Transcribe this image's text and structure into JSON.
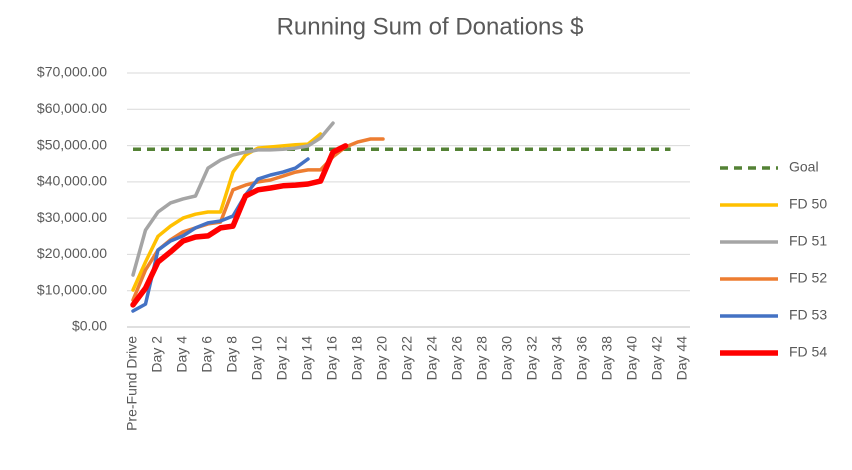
{
  "chart_data": {
    "type": "line",
    "title": "Running Sum of Donations $",
    "categories": [
      "Pre-Fund Drive",
      null,
      "Day 2",
      null,
      "Day 4",
      null,
      "Day 6",
      null,
      "Day 8",
      null,
      "Day 10",
      null,
      "Day 12",
      null,
      "Day 14",
      null,
      "Day 16",
      null,
      "Day 18",
      null,
      "Day 20",
      null,
      "Day 22",
      null,
      "Day 24",
      null,
      "Day 26",
      null,
      "Day 28",
      null,
      "Day 30",
      null,
      "Day 32",
      null,
      "Day 34",
      null,
      "Day 36",
      null,
      "Day 38",
      null,
      "Day 40",
      null,
      "Day 42",
      null,
      "Day 44"
    ],
    "ylim": [
      0,
      70000
    ],
    "yticks": [
      {
        "value": 0,
        "label": "$0.00"
      },
      {
        "value": 10000,
        "label": "$10,000.00"
      },
      {
        "value": 20000,
        "label": "$20,000.00"
      },
      {
        "value": 30000,
        "label": "$30,000.00"
      },
      {
        "value": 40000,
        "label": "$40,000.00"
      },
      {
        "value": 50000,
        "label": "$50,000.00"
      },
      {
        "value": 60000,
        "label": "$60,000.00"
      },
      {
        "value": 70000,
        "label": "$70,000.00"
      }
    ],
    "grid": true,
    "legend": "right",
    "series": [
      {
        "name": "Goal",
        "color": "#548235",
        "line_style": "dashed",
        "values": [
          49000,
          49000,
          49000,
          49000,
          49000,
          49000,
          49000,
          49000,
          49000,
          49000,
          49000,
          49000,
          49000,
          49000,
          49000,
          49000,
          49000,
          49000,
          49000,
          49000,
          49000,
          49000,
          49000,
          49000,
          49000,
          49000,
          49000,
          49000,
          49000,
          49000,
          49000,
          49000,
          49000,
          49000,
          49000,
          49000,
          49000,
          49000,
          49000,
          49000,
          49000,
          49000,
          49000,
          49000,
          null
        ]
      },
      {
        "name": "FD 50",
        "color": "#FFC000",
        "values": [
          10200,
          17900,
          25000,
          27800,
          30000,
          31100,
          31700,
          31700,
          42700,
          47400,
          49300,
          49600,
          49900,
          50200,
          50400,
          53200,
          null,
          null,
          null,
          null,
          null,
          null,
          null,
          null,
          null,
          null,
          null,
          null,
          null,
          null,
          null,
          null,
          null,
          null,
          null,
          null,
          null,
          null,
          null,
          null,
          null,
          null,
          null,
          null,
          null
        ]
      },
      {
        "name": "FD 51",
        "color": "#A5A5A5",
        "values": [
          14300,
          26700,
          31700,
          34200,
          35300,
          36100,
          43800,
          46000,
          47400,
          48200,
          48800,
          48800,
          49000,
          49300,
          49900,
          52100,
          56200,
          null,
          null,
          null,
          null,
          null,
          null,
          null,
          null,
          null,
          null,
          null,
          null,
          null,
          null,
          null,
          null,
          null,
          null,
          null,
          null,
          null,
          null,
          null,
          null,
          null,
          null,
          null,
          null
        ]
      },
      {
        "name": "FD 52",
        "color": "#ED7D31",
        "values": [
          7400,
          15700,
          21200,
          24000,
          26200,
          27300,
          28400,
          28900,
          37800,
          39100,
          40000,
          40500,
          41600,
          42700,
          43300,
          43300,
          46900,
          49600,
          51000,
          51800,
          51800,
          null,
          null,
          null,
          null,
          null,
          null,
          null,
          null,
          null,
          null,
          null,
          null,
          null,
          null,
          null,
          null,
          null,
          null,
          null,
          null,
          null,
          null,
          null,
          null
        ]
      },
      {
        "name": "FD 53",
        "color": "#4472C4",
        "values": [
          4400,
          6300,
          21200,
          23700,
          25100,
          27300,
          28700,
          29200,
          30600,
          36400,
          40800,
          41900,
          42700,
          43800,
          46300,
          null,
          null,
          null,
          null,
          null,
          null,
          null,
          null,
          null,
          null,
          null,
          null,
          null,
          null,
          null,
          null,
          null,
          null,
          null,
          null,
          null,
          null,
          null,
          null,
          null,
          null,
          null,
          null,
          null,
          null
        ]
      },
      {
        "name": "FD 54",
        "color": "#FF0000",
        "values": [
          6100,
          10700,
          17900,
          20700,
          23700,
          24800,
          25100,
          27300,
          27800,
          36100,
          37800,
          38300,
          38900,
          39100,
          39400,
          40200,
          48200,
          49900,
          null,
          null,
          null,
          null,
          null,
          null,
          null,
          null,
          null,
          null,
          null,
          null,
          null,
          null,
          null,
          null,
          null,
          null,
          null,
          null,
          null,
          null,
          null,
          null,
          null,
          null,
          null
        ]
      }
    ]
  }
}
